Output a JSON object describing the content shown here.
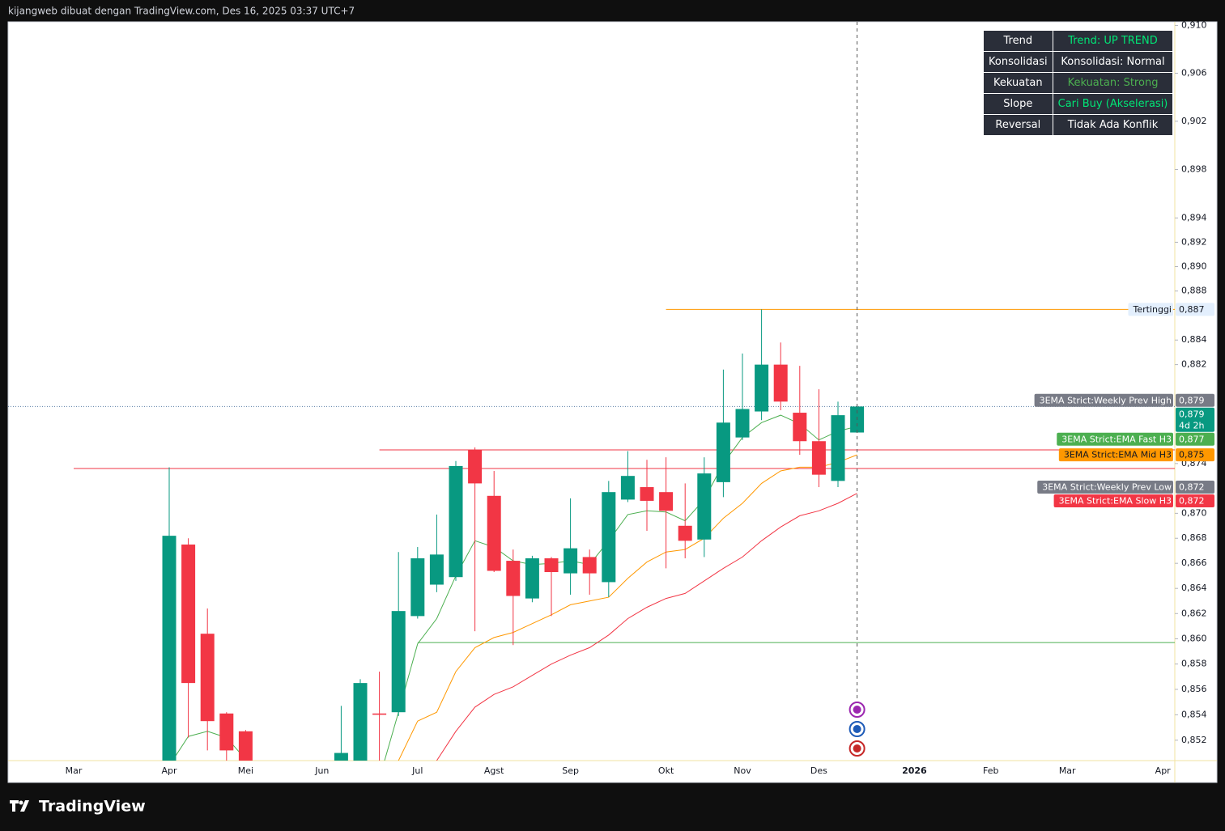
{
  "header": "kijangweb dibuat dengan TradingView.com, Des 16, 2025 03:37 UTC+7",
  "branding": "TradingView",
  "table": {
    "rows": [
      {
        "label": "Trend",
        "value": "Trend: UP TREND",
        "color": "#00e676"
      },
      {
        "label": "Konsolidasi",
        "value": "Konsolidasi: Normal",
        "color": "#ffffff"
      },
      {
        "label": "Kekuatan",
        "value": "Kekuatan: Strong",
        "color": "#4caf50"
      },
      {
        "label": "Slope",
        "value": "Cari Buy (Akselerasi)",
        "color": "#00e676"
      },
      {
        "label": "Reversal",
        "value": "Tidak Ada Konflik",
        "color": "#ffffff"
      }
    ]
  },
  "chart_data": {
    "type": "candlestick",
    "log_scale": true,
    "grid": false,
    "up_color": "#089981",
    "down_color": "#f23645",
    "categories": [
      "Mar",
      null,
      null,
      null,
      null,
      "Apr",
      null,
      null,
      null,
      "Mei",
      null,
      null,
      null,
      "Jun",
      null,
      null,
      null,
      null,
      "Jul",
      null,
      null,
      null,
      "Agst",
      null,
      null,
      null,
      "Sep",
      null,
      null,
      null,
      null,
      "Okt",
      null,
      null,
      null,
      "Nov",
      null,
      null,
      null,
      "Des",
      null,
      null,
      null,
      null,
      "2026",
      null,
      null,
      null,
      "Feb",
      null,
      null,
      null,
      "Mar",
      null,
      null,
      null,
      null,
      "Apr"
    ],
    "open": [
      null,
      null,
      null,
      null,
      null,
      0.848,
      0.8675,
      0.8604,
      0.8541,
      0.8527,
      null,
      null,
      null,
      null,
      0.849,
      0.8495,
      0.8541,
      0.8542,
      0.8618,
      0.8643,
      0.8649,
      0.8751,
      0.8714,
      0.8662,
      0.8632,
      0.8664,
      0.8652,
      0.8665,
      0.8645,
      0.8711,
      0.8721,
      0.8717,
      0.869,
      0.8679,
      0.8725,
      0.8761,
      0.8782,
      0.882,
      0.8781,
      0.8758,
      0.8726,
      0.8765,
      null,
      null,
      null,
      null,
      null,
      null,
      null,
      null,
      null,
      null,
      null,
      null,
      null,
      null,
      null,
      null
    ],
    "high": [
      null,
      null,
      null,
      null,
      null,
      0.8737,
      0.868,
      0.8624,
      0.8542,
      0.8528,
      null,
      null,
      null,
      null,
      0.8547,
      0.8568,
      0.8574,
      0.8669,
      0.8673,
      0.8699,
      0.8742,
      0.8753,
      0.8734,
      0.8671,
      0.8666,
      0.8665,
      0.8712,
      0.8671,
      0.8726,
      0.875,
      0.8743,
      0.8745,
      0.8724,
      0.8745,
      0.8816,
      0.8829,
      0.8865,
      0.8838,
      0.8819,
      0.88,
      0.879,
      0.8787,
      null,
      null,
      null,
      null,
      null,
      null,
      null,
      null,
      null,
      null,
      null,
      null,
      null,
      null,
      null,
      null
    ],
    "low": [
      null,
      null,
      null,
      null,
      null,
      0.847,
      0.8522,
      0.8512,
      0.85,
      0.849,
      null,
      null,
      null,
      null,
      0.8485,
      0.849,
      0.85,
      0.8539,
      0.8616,
      0.8637,
      0.8646,
      0.8606,
      0.8653,
      0.8595,
      0.8629,
      0.8618,
      0.8635,
      0.8635,
      0.8633,
      0.8709,
      0.8686,
      0.8656,
      0.8664,
      0.8665,
      0.8713,
      0.8759,
      0.8775,
      0.8783,
      0.8747,
      0.8721,
      0.8721,
      0.8765,
      null,
      null,
      null,
      null,
      null,
      null,
      null,
      null,
      null,
      null,
      null,
      null,
      null,
      null,
      null,
      null
    ],
    "close": [
      null,
      null,
      null,
      null,
      null,
      0.8682,
      0.8565,
      0.8535,
      0.8512,
      0.8495,
      null,
      null,
      null,
      null,
      0.851,
      0.8565,
      0.854,
      0.8622,
      0.8664,
      0.8667,
      0.8738,
      0.8724,
      0.8654,
      0.8634,
      0.8664,
      0.8653,
      0.8672,
      0.8652,
      0.8717,
      0.873,
      0.871,
      0.8702,
      0.8678,
      0.8732,
      0.8773,
      0.8784,
      0.882,
      0.879,
      0.8758,
      0.8731,
      0.8779,
      0.8786,
      null,
      null,
      null,
      null,
      null,
      null,
      null,
      null,
      null,
      null,
      null,
      null,
      null,
      null,
      null,
      null
    ],
    "series": [
      {
        "name": "3EMA Strict:EMA Fast H3",
        "color": "#4caf50",
        "label_text_color": "#ffffff",
        "last_value_label": "0,877",
        "values": [
          null,
          null,
          null,
          null,
          null,
          0.85,
          0.8523,
          0.8527,
          0.8522,
          0.8505,
          null,
          null,
          null,
          null,
          null,
          null,
          0.849,
          0.8542,
          0.8596,
          0.8616,
          0.865,
          0.8678,
          0.8673,
          0.8662,
          0.8659,
          0.866,
          0.8662,
          0.8659,
          0.8678,
          0.8699,
          0.8702,
          0.8701,
          0.8694,
          0.8711,
          0.874,
          0.8761,
          0.8773,
          0.8779,
          0.8772,
          0.8759,
          0.8766,
          0.877,
          null,
          null,
          null,
          null,
          null,
          null,
          null,
          null,
          null,
          null,
          null,
          null,
          null,
          null,
          null,
          null
        ]
      },
      {
        "name": "3EMA Strict:EMA Mid H3",
        "color": "#ff9800",
        "label_text_color": "#131722",
        "last_value_label": "0,875",
        "values": [
          null,
          null,
          null,
          null,
          null,
          null,
          null,
          null,
          null,
          null,
          null,
          null,
          null,
          null,
          null,
          null,
          null,
          0.8504,
          0.8535,
          0.8542,
          0.8574,
          0.8593,
          0.8601,
          0.8605,
          0.8612,
          0.8619,
          0.8627,
          0.863,
          0.8633,
          0.8648,
          0.8661,
          0.8669,
          0.8671,
          0.868,
          0.8696,
          0.8708,
          0.8724,
          0.8734,
          0.8737,
          0.8737,
          0.8741,
          0.8747,
          null,
          null,
          null,
          null,
          null,
          null,
          null,
          null,
          null,
          null,
          null,
          null,
          null,
          null,
          null,
          null
        ]
      },
      {
        "name": "3EMA Strict:EMA Slow H3",
        "color": "#f23645",
        "label_text_color": "#ffffff",
        "last_value_label": "0,872",
        "values": [
          null,
          null,
          null,
          null,
          null,
          null,
          null,
          null,
          null,
          null,
          null,
          null,
          null,
          null,
          null,
          null,
          null,
          null,
          null,
          0.8504,
          0.8527,
          0.8546,
          0.8556,
          0.8562,
          0.8571,
          0.858,
          0.8587,
          0.8593,
          0.8603,
          0.8616,
          0.8625,
          0.8632,
          0.8636,
          0.8646,
          0.8656,
          0.8665,
          0.8678,
          0.8689,
          0.8698,
          0.8702,
          0.8708,
          0.8716,
          null,
          null,
          null,
          null,
          null,
          null,
          null,
          null,
          null,
          null,
          null,
          null,
          null,
          null,
          null,
          null
        ]
      }
    ],
    "levels": [
      {
        "name": "Tertinggi",
        "value": 0.8865,
        "label": "0,887",
        "from": 31,
        "color": "#ff9800",
        "label_background": "#e3effd",
        "label_text_color": "#131722"
      },
      {
        "value": 0.8751,
        "from": 16,
        "color": "#f23645"
      },
      {
        "value": 0.8736,
        "from": 0,
        "color": "#f23645"
      },
      {
        "value": 0.8597,
        "from": 18,
        "color": "#4caf50"
      }
    ],
    "markers": [
      {
        "name": "3EMA Strict:Weekly Prev High",
        "value": 0.8791,
        "label": "0,879",
        "color": "#787b86"
      },
      {
        "name": "3EMA Strict:Weekly Prev Low",
        "value": 0.8721,
        "label": "0,872",
        "color": "#787b86"
      }
    ],
    "current_price": {
      "value": 0.8786,
      "label": "0,879",
      "countdown": "4d 2h",
      "color": "#089981"
    },
    "ylim": [
      0.8504,
      0.9103
    ],
    "yticks": [
      {
        "value": 0.91,
        "label": "0,910"
      },
      {
        "value": 0.906,
        "label": "0,906"
      },
      {
        "value": 0.902,
        "label": "0,902"
      },
      {
        "value": 0.898,
        "label": "0,898"
      },
      {
        "value": 0.894,
        "label": "0,894"
      },
      {
        "value": 0.892,
        "label": "0,892"
      },
      {
        "value": 0.89,
        "label": "0,890"
      },
      {
        "value": 0.888,
        "label": "0,888"
      },
      {
        "value": 0.884,
        "label": "0,884"
      },
      {
        "value": 0.882,
        "label": "0,882"
      },
      {
        "value": 0.874,
        "label": "0,874"
      },
      {
        "value": 0.87,
        "label": "0,870"
      },
      {
        "value": 0.868,
        "label": "0,868"
      },
      {
        "value": 0.866,
        "label": "0,866"
      },
      {
        "value": 0.864,
        "label": "0,864"
      },
      {
        "value": 0.862,
        "label": "0,862"
      },
      {
        "value": 0.86,
        "label": "0,860"
      },
      {
        "value": 0.858,
        "label": "0,858"
      },
      {
        "value": 0.856,
        "label": "0,856"
      },
      {
        "value": 0.854,
        "label": "0,854"
      },
      {
        "value": 0.852,
        "label": "0,852"
      }
    ]
  }
}
